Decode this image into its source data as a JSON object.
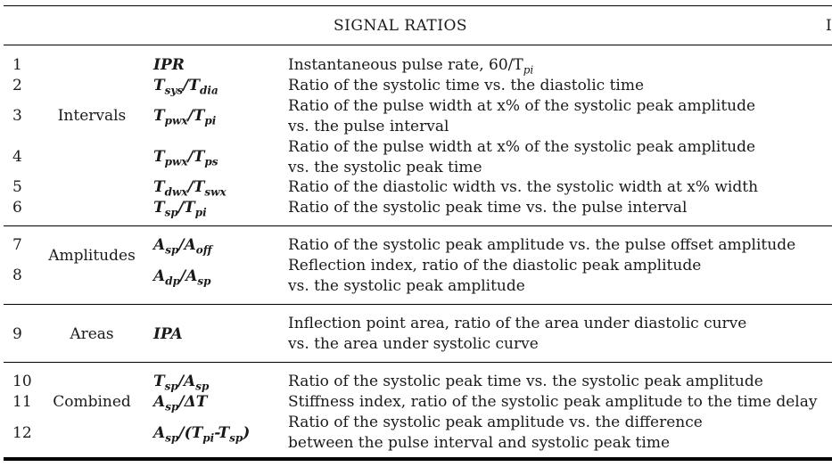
{
  "table": {
    "title": "SIGNAL RATIOS",
    "edge_fragment": "I",
    "groups": [
      {
        "label": "Intervals",
        "rows": [
          {
            "num": "1",
            "symbol": {
              "main": "IPR",
              "sub": ""
            },
            "lines": [
              "Instantaneous pulse rate, 60/T",
              "pi"
            ]
          },
          {
            "num": "2",
            "symbol": {
              "a": "T",
              "as": "sys",
              "b": "T",
              "bs": "dia"
            },
            "lines": [
              "Ratio of the systolic time vs. the diastolic time"
            ]
          },
          {
            "num": "3",
            "symbol": {
              "a": "T",
              "as": "pwx",
              "b": "T",
              "bs": "pi"
            },
            "lines": [
              "Ratio of the pulse width at x% of the systolic peak amplitude",
              "vs. the pulse interval"
            ]
          },
          {
            "num": "4",
            "symbol": {
              "a": "T",
              "as": "pwx",
              "b": "T",
              "bs": "ps"
            },
            "lines": [
              "Ratio of the pulse width at x% of the systolic peak amplitude",
              "vs. the systolic peak time"
            ]
          },
          {
            "num": "5",
            "symbol": {
              "a": "T",
              "as": "dwx",
              "b": "T",
              "bs": "swx"
            },
            "lines": [
              "Ratio of the diastolic width vs. the systolic width at x% width"
            ]
          },
          {
            "num": "6",
            "symbol": {
              "a": "T",
              "as": "sp",
              "b": "T",
              "bs": "pi"
            },
            "lines": [
              "Ratio of the systolic peak time vs. the pulse interval"
            ]
          }
        ]
      },
      {
        "label": "Amplitudes",
        "rows": [
          {
            "num": "7",
            "symbol": {
              "a": "A",
              "as": "sp",
              "b": "A",
              "bs": "off"
            },
            "lines": [
              "Ratio of the systolic peak amplitude vs. the pulse offset amplitude"
            ]
          },
          {
            "num": "8",
            "symbol": {
              "a": "A",
              "as": "dp",
              "b": "A",
              "bs": "sp"
            },
            "lines": [
              "Reflection index, ratio of the diastolic peak amplitude",
              "vs. the systolic peak amplitude"
            ]
          }
        ]
      },
      {
        "label": "Areas",
        "rows": [
          {
            "num": "9",
            "symbol": {
              "main": "IPA"
            },
            "lines": [
              "Inflection point area, ratio of the area under diastolic curve",
              "vs. the area under systolic curve"
            ]
          }
        ]
      },
      {
        "label": "Combined",
        "rows": [
          {
            "num": "10",
            "symbol": {
              "a": "T",
              "as": "sp",
              "b": "A",
              "bs": "sp"
            },
            "lines": [
              "Ratio of the systolic peak time vs. the systolic peak amplitude"
            ]
          },
          {
            "num": "11",
            "symbol": {
              "a": "A",
              "as": "sp",
              "b": "ΔT",
              "bs": ""
            },
            "lines": [
              "Stiffness index, ratio of the systolic peak amplitude to the time delay"
            ]
          },
          {
            "num": "12",
            "symbol": {
              "a": "A",
              "as": "sp",
              "b": "(T",
              "bs": "pi",
              "c": "-T",
              "cs": "sp",
              "d": ")"
            },
            "lines": [
              "Ratio of the systolic peak amplitude vs. the difference",
              "between the pulse interval and systolic peak time"
            ]
          }
        ]
      }
    ]
  }
}
